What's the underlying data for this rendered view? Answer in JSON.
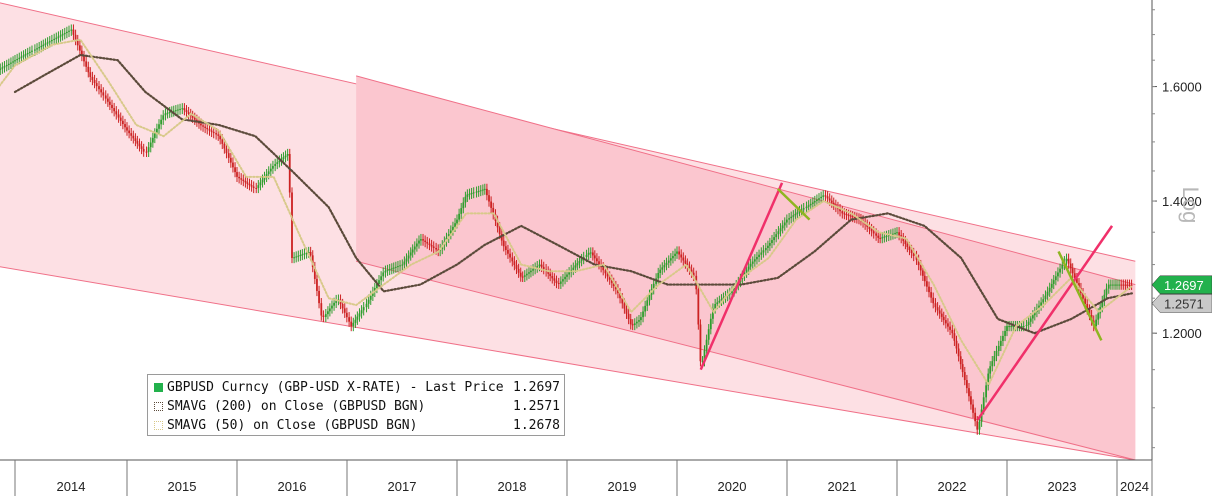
{
  "chart_data": {
    "type": "line",
    "title": "",
    "axis_side_label": "Log",
    "y_scale": "log",
    "ylim": [
      1.035,
      1.77
    ],
    "y_ticks": [
      "1.2000",
      "1.4000",
      "1.6000"
    ],
    "x_ticks": [
      "2014",
      "2015",
      "2016",
      "2017",
      "2018",
      "2019",
      "2020",
      "2021",
      "2022",
      "2023",
      "2024"
    ],
    "grid": false,
    "legend_position": "bottom-left",
    "last_value_tags": [
      {
        "text": "1.2697",
        "color": "#22b14c"
      },
      {
        "text": "1.2571",
        "color": "#c9c9c9"
      }
    ],
    "series": [
      {
        "name": "GBPUSD Curncy (GBP-USD X-RATE) - Last Price",
        "last": "1.2697",
        "style": "candlestick",
        "up_color": "#2e9e2e",
        "down_color": "#cc2222",
        "points": [
          [
            "2013-07-01",
            1.53
          ],
          [
            "2013-09-01",
            1.58
          ],
          [
            "2013-11-01",
            1.63
          ],
          [
            "2014-01-01",
            1.65
          ],
          [
            "2014-03-01",
            1.67
          ],
          [
            "2014-05-01",
            1.69
          ],
          [
            "2014-07-01",
            1.71
          ],
          [
            "2014-09-01",
            1.62
          ],
          [
            "2014-11-01",
            1.57
          ],
          [
            "2015-01-01",
            1.52
          ],
          [
            "2015-03-01",
            1.48
          ],
          [
            "2015-05-01",
            1.55
          ],
          [
            "2015-07-01",
            1.56
          ],
          [
            "2015-09-01",
            1.53
          ],
          [
            "2015-11-01",
            1.51
          ],
          [
            "2016-01-01",
            1.44
          ],
          [
            "2016-03-01",
            1.42
          ],
          [
            "2016-05-01",
            1.46
          ],
          [
            "2016-06-20",
            1.48
          ],
          [
            "2016-07-01",
            1.31
          ],
          [
            "2016-09-01",
            1.32
          ],
          [
            "2016-10-10",
            1.22
          ],
          [
            "2016-12-01",
            1.25
          ],
          [
            "2017-01-15",
            1.21
          ],
          [
            "2017-03-01",
            1.24
          ],
          [
            "2017-05-01",
            1.29
          ],
          [
            "2017-07-01",
            1.3
          ],
          [
            "2017-09-01",
            1.34
          ],
          [
            "2017-11-01",
            1.32
          ],
          [
            "2018-01-01",
            1.37
          ],
          [
            "2018-02-01",
            1.41
          ],
          [
            "2018-04-01",
            1.42
          ],
          [
            "2018-06-01",
            1.33
          ],
          [
            "2018-08-01",
            1.28
          ],
          [
            "2018-10-01",
            1.3
          ],
          [
            "2018-12-01",
            1.27
          ],
          [
            "2019-02-01",
            1.3
          ],
          [
            "2019-03-15",
            1.32
          ],
          [
            "2019-05-01",
            1.29
          ],
          [
            "2019-06-15",
            1.26
          ],
          [
            "2019-08-01",
            1.21
          ],
          [
            "2019-09-01",
            1.22
          ],
          [
            "2019-11-01",
            1.29
          ],
          [
            "2020-01-01",
            1.32
          ],
          [
            "2020-03-01",
            1.28
          ],
          [
            "2020-03-19",
            1.15
          ],
          [
            "2020-05-01",
            1.24
          ],
          [
            "2020-07-01",
            1.26
          ],
          [
            "2020-09-01",
            1.3
          ],
          [
            "2020-11-01",
            1.33
          ],
          [
            "2021-01-01",
            1.37
          ],
          [
            "2021-03-01",
            1.39
          ],
          [
            "2021-05-01",
            1.41
          ],
          [
            "2021-07-01",
            1.38
          ],
          [
            "2021-09-01",
            1.37
          ],
          [
            "2021-11-01",
            1.34
          ],
          [
            "2022-01-01",
            1.35
          ],
          [
            "2022-03-01",
            1.31
          ],
          [
            "2022-05-01",
            1.24
          ],
          [
            "2022-07-01",
            1.2
          ],
          [
            "2022-09-26",
            1.07
          ],
          [
            "2022-11-01",
            1.15
          ],
          [
            "2023-01-01",
            1.21
          ],
          [
            "2023-03-01",
            1.21
          ],
          [
            "2023-05-01",
            1.25
          ],
          [
            "2023-07-14",
            1.31
          ],
          [
            "2023-09-01",
            1.26
          ],
          [
            "2023-10-15",
            1.21
          ],
          [
            "2023-12-01",
            1.27
          ],
          [
            "2024-01-15",
            1.27
          ],
          [
            "2024-02-20",
            1.2697
          ]
        ]
      },
      {
        "name": "SMAVG (200)  on Close (GBPUSD BGN)",
        "last": "1.2571",
        "style": "dotted",
        "color": "#5b4a3a",
        "points": [
          [
            "2014-01-01",
            1.59
          ],
          [
            "2014-04-01",
            1.62
          ],
          [
            "2014-08-01",
            1.66
          ],
          [
            "2014-12-01",
            1.65
          ],
          [
            "2015-03-01",
            1.59
          ],
          [
            "2015-07-01",
            1.54
          ],
          [
            "2015-11-01",
            1.53
          ],
          [
            "2016-03-01",
            1.51
          ],
          [
            "2016-07-01",
            1.45
          ],
          [
            "2016-11-01",
            1.39
          ],
          [
            "2017-02-01",
            1.31
          ],
          [
            "2017-05-01",
            1.26
          ],
          [
            "2017-09-01",
            1.27
          ],
          [
            "2018-01-01",
            1.3
          ],
          [
            "2018-04-01",
            1.33
          ],
          [
            "2018-08-01",
            1.36
          ],
          [
            "2018-12-01",
            1.33
          ],
          [
            "2019-04-01",
            1.3
          ],
          [
            "2019-08-01",
            1.29
          ],
          [
            "2019-12-01",
            1.27
          ],
          [
            "2020-04-01",
            1.27
          ],
          [
            "2020-08-01",
            1.27
          ],
          [
            "2020-12-01",
            1.28
          ],
          [
            "2021-04-01",
            1.32
          ],
          [
            "2021-08-01",
            1.37
          ],
          [
            "2021-12-01",
            1.38
          ],
          [
            "2022-04-01",
            1.36
          ],
          [
            "2022-08-01",
            1.31
          ],
          [
            "2022-12-01",
            1.22
          ],
          [
            "2023-04-01",
            1.2
          ],
          [
            "2023-08-01",
            1.22
          ],
          [
            "2023-12-01",
            1.25
          ],
          [
            "2024-02-20",
            1.2571
          ]
        ]
      },
      {
        "name": "SMAVG (50)  on Close (GBPUSD BGN)",
        "last": "1.2678",
        "style": "dotted",
        "color": "#d8c98a",
        "points": [
          [
            "2013-09-01",
            1.55
          ],
          [
            "2014-01-01",
            1.64
          ],
          [
            "2014-05-01",
            1.68
          ],
          [
            "2014-08-01",
            1.69
          ],
          [
            "2014-11-01",
            1.61
          ],
          [
            "2015-02-01",
            1.53
          ],
          [
            "2015-05-01",
            1.51
          ],
          [
            "2015-08-01",
            1.55
          ],
          [
            "2015-11-01",
            1.52
          ],
          [
            "2016-02-01",
            1.44
          ],
          [
            "2016-05-01",
            1.44
          ],
          [
            "2016-08-01",
            1.34
          ],
          [
            "2016-11-01",
            1.25
          ],
          [
            "2017-02-01",
            1.24
          ],
          [
            "2017-05-01",
            1.27
          ],
          [
            "2017-08-01",
            1.3
          ],
          [
            "2017-11-01",
            1.32
          ],
          [
            "2018-02-01",
            1.38
          ],
          [
            "2018-05-01",
            1.38
          ],
          [
            "2018-08-01",
            1.3
          ],
          [
            "2018-11-01",
            1.29
          ],
          [
            "2019-02-01",
            1.29
          ],
          [
            "2019-05-01",
            1.3
          ],
          [
            "2019-08-01",
            1.23
          ],
          [
            "2019-11-01",
            1.27
          ],
          [
            "2020-02-01",
            1.3
          ],
          [
            "2020-05-01",
            1.23
          ],
          [
            "2020-08-01",
            1.28
          ],
          [
            "2020-11-01",
            1.31
          ],
          [
            "2021-02-01",
            1.37
          ],
          [
            "2021-05-01",
            1.4
          ],
          [
            "2021-08-01",
            1.38
          ],
          [
            "2021-11-01",
            1.35
          ],
          [
            "2022-02-01",
            1.34
          ],
          [
            "2022-05-01",
            1.27
          ],
          [
            "2022-08-01",
            1.19
          ],
          [
            "2022-11-01",
            1.13
          ],
          [
            "2023-02-01",
            1.21
          ],
          [
            "2023-05-01",
            1.24
          ],
          [
            "2023-08-01",
            1.28
          ],
          [
            "2023-11-01",
            1.23
          ],
          [
            "2024-02-20",
            1.2678
          ]
        ]
      }
    ]
  },
  "legend": {
    "rows": [
      {
        "label": "GBPUSD Curncy (GBP-USD X-RATE) - Last Price",
        "value": "1.2697",
        "swatch": "#22b14c"
      },
      {
        "label": "SMAVG (200)  on Close (GBPUSD BGN)",
        "value": "1.2571",
        "swatch": "#5b4a3a"
      },
      {
        "label": "SMAVG (50)  on Close (GBPUSD BGN)",
        "value": "1.2678",
        "swatch": "#d8c98a"
      }
    ]
  },
  "annotations": {
    "channel_fill": "#fde0e4",
    "inner_channel_fill": "#fbc6cf",
    "channel_edge": "#f07088",
    "trend_line_color": "#f0306a",
    "reversal_line_color": "#8fb520",
    "trend_lines": [
      {
        "from": [
          "2020-03-19",
          1.15
        ],
        "to": [
          "2020-12-15",
          1.43
        ]
      },
      {
        "from": [
          "2022-09-26",
          1.085
        ],
        "to": [
          "2023-12-15",
          1.36
        ]
      }
    ],
    "reversal_lines": [
      {
        "from": [
          "2020-12-01",
          1.42
        ],
        "to": [
          "2021-03-15",
          1.37
        ]
      },
      {
        "from": [
          "2023-06-20",
          1.32
        ],
        "to": [
          "2023-11-10",
          1.19
        ]
      }
    ],
    "outer_channel": {
      "upper_start": [
        "2013-10-01",
        1.77
      ],
      "upper_end": [
        "2024-03-01",
        1.305
      ],
      "lower_start": [
        "2013-10-01",
        1.3
      ],
      "lower_end": [
        "2024-03-01",
        1.035
      ]
    },
    "inner_channel": {
      "upper_start": [
        "2017-02-01",
        1.62
      ],
      "upper_end": [
        "2024-03-01",
        1.27
      ],
      "lower_start": [
        "2017-02-01",
        1.305
      ],
      "lower_end": [
        "2024-03-01",
        1.035
      ]
    }
  }
}
